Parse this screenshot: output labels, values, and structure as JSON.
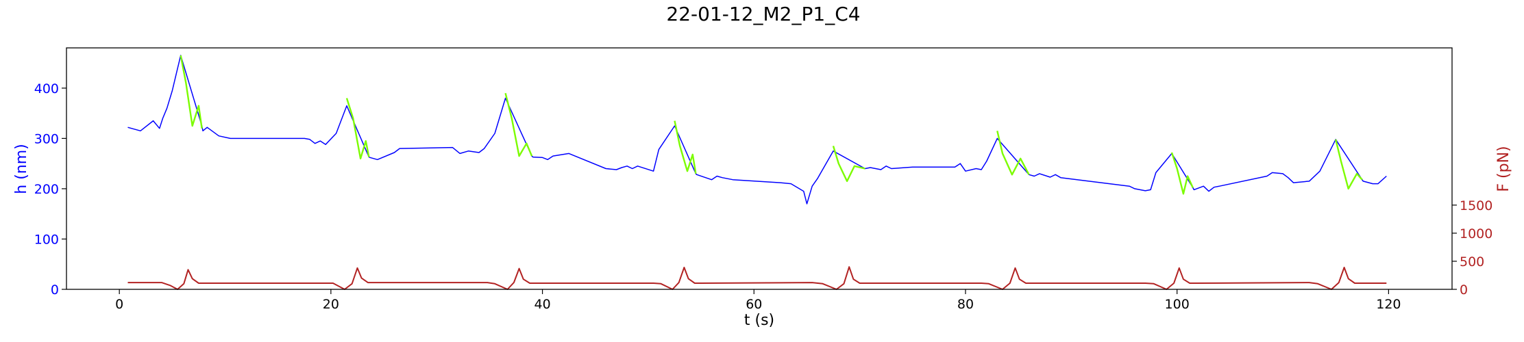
{
  "chart_data": {
    "type": "line",
    "title": "22-01-12_M2_P1_C4",
    "xlabel": "t (s)",
    "ylabel_left": "h (nm)",
    "ylabel_right": "F (pN)",
    "xlim": [
      -5,
      126
    ],
    "ylim_left": [
      0,
      480
    ],
    "ylim_right": [
      0,
      4300
    ],
    "x_ticks": [
      0,
      20,
      40,
      60,
      80,
      100,
      120
    ],
    "y_left_ticks": [
      0,
      100,
      200,
      300,
      400
    ],
    "y_right_ticks": [
      0,
      500,
      1000,
      1500
    ],
    "grid": false,
    "colors": {
      "height_baseline": "#0000ff",
      "height_force_phase": "#7cfc00",
      "force": "#b22222",
      "left_axis": "#0000ff",
      "right_axis": "#b22222"
    },
    "series": [
      {
        "axis": "left",
        "color": "#0000ff",
        "x": [
          0.8,
          2.0,
          3.2,
          3.8,
          4.1,
          4.5,
          5.0,
          5.4,
          5.8,
          7.8,
          7.9,
          8.3,
          9.4,
          10.5,
          17.5,
          18.0,
          18.5,
          19.0,
          19.5,
          20.5,
          21.5,
          23.6,
          23.7,
          24.4,
          26.0,
          26.5,
          31.5,
          32.2,
          33.0,
          34.0,
          34.5,
          35.5,
          36.5,
          39.0,
          39.1,
          40.0,
          40.5,
          41.0,
          42.5,
          46.0,
          47.0,
          47.5,
          48.0,
          48.5,
          49.0,
          50.5,
          51.0,
          52.5,
          54.5,
          54.6,
          56.0,
          56.5,
          57.0,
          58.0,
          62.5,
          63.5,
          64.7,
          65.0,
          65.5,
          66.0,
          67.5,
          70.5,
          71.0,
          72.0,
          72.5,
          73.0,
          75.0,
          79.0,
          79.5,
          80.0,
          81.0,
          81.5,
          82.0,
          83.0,
          86.0,
          86.5,
          87.0,
          88.0,
          88.5,
          89.0,
          95.5,
          96.0,
          97.0,
          97.5,
          98.0,
          99.5,
          101.5,
          101.6,
          102.5,
          103.0,
          103.5,
          104.0,
          108.5,
          109.0,
          110.0,
          110.5,
          111.0,
          112.5,
          113.5,
          115.0,
          117.5,
          117.6,
          118.5,
          119.0,
          119.8
        ],
        "y": [
          322,
          315,
          335,
          320,
          340,
          360,
          395,
          430,
          465,
          325,
          315,
          322,
          305,
          300,
          300,
          298,
          290,
          295,
          288,
          310,
          365,
          263,
          262,
          258,
          272,
          280,
          282,
          270,
          275,
          272,
          280,
          310,
          380,
          265,
          263,
          262,
          258,
          265,
          270,
          240,
          238,
          242,
          245,
          240,
          245,
          235,
          278,
          325,
          230,
          228,
          218,
          225,
          222,
          218,
          212,
          210,
          195,
          170,
          205,
          220,
          275,
          240,
          242,
          238,
          245,
          240,
          243,
          243,
          250,
          235,
          240,
          238,
          255,
          300,
          228,
          225,
          230,
          223,
          228,
          222,
          205,
          200,
          196,
          198,
          232,
          270,
          202,
          198,
          205,
          195,
          203,
          205,
          225,
          232,
          230,
          222,
          212,
          215,
          235,
          298,
          218,
          215,
          210,
          210,
          225
        ]
      },
      {
        "axis": "left",
        "color": "#7cfc00",
        "x": [
          5.8,
          6.3,
          6.9,
          7.5,
          7.8,
          21.5,
          22.1,
          22.8,
          23.3,
          23.6,
          36.5,
          37.1,
          37.8,
          38.5,
          39.0,
          52.5,
          53.0,
          53.7,
          54.2,
          54.5,
          67.5,
          68.0,
          68.8,
          69.5,
          70.5,
          83.0,
          83.5,
          84.4,
          85.2,
          86.0,
          99.5,
          100.0,
          100.6,
          101.0,
          101.5,
          115.0,
          115.5,
          116.2,
          117.0,
          117.5
        ],
        "y": [
          465,
          410,
          325,
          365,
          320,
          380,
          340,
          260,
          295,
          263,
          390,
          340,
          265,
          290,
          265,
          335,
          285,
          235,
          268,
          230,
          285,
          250,
          215,
          245,
          240,
          315,
          270,
          228,
          260,
          228,
          272,
          240,
          190,
          225,
          202,
          298,
          255,
          200,
          230,
          218
        ]
      },
      {
        "axis": "right",
        "color": "#b22222",
        "x": [
          0.8,
          4.0,
          4.8,
          5.5,
          6.1,
          6.5,
          6.9,
          7.5,
          8.2,
          19.5,
          20.2,
          21.3,
          22.0,
          22.5,
          22.9,
          23.5,
          24.2,
          34.8,
          35.5,
          36.7,
          37.3,
          37.8,
          38.2,
          38.8,
          39.4,
          50.5,
          51.2,
          52.3,
          52.9,
          53.4,
          53.8,
          54.4,
          55.0,
          65.5,
          66.5,
          67.8,
          68.5,
          69.0,
          69.4,
          70.0,
          70.6,
          81.5,
          82.2,
          83.5,
          84.2,
          84.7,
          85.1,
          85.7,
          86.3,
          97.0,
          97.8,
          99.0,
          99.7,
          100.2,
          100.6,
          101.2,
          101.8,
          112.5,
          113.3,
          114.6,
          115.3,
          115.8,
          116.2,
          116.8,
          117.4,
          119.8
        ],
        "y": [
          120,
          120,
          70,
          0,
          100,
          350,
          190,
          110,
          110,
          110,
          110,
          0,
          100,
          380,
          200,
          120,
          120,
          120,
          100,
          0,
          120,
          370,
          180,
          110,
          110,
          110,
          100,
          0,
          120,
          390,
          190,
          110,
          110,
          120,
          100,
          0,
          100,
          400,
          180,
          110,
          110,
          110,
          100,
          0,
          110,
          380,
          180,
          110,
          110,
          110,
          100,
          0,
          110,
          380,
          180,
          110,
          110,
          120,
          100,
          0,
          120,
          390,
          190,
          110,
          110,
          110
        ]
      }
    ]
  }
}
